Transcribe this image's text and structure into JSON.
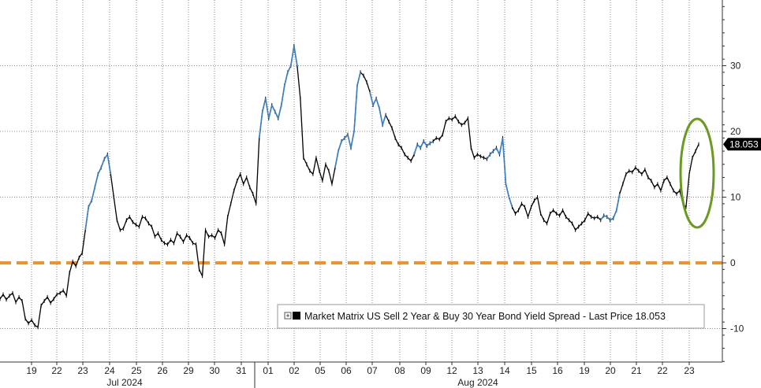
{
  "chart_data": {
    "type": "line",
    "title": "",
    "xlabel": "",
    "ylabel": "",
    "ylim": [
      -15,
      40
    ],
    "y_ticks": [
      -10,
      0,
      10,
      20,
      30
    ],
    "grid": true,
    "legend_placement": "bottom-right",
    "legend": "Market Matrix US Sell 2 Year & Buy 30 Year Bond Yield Spread - Last Price 18.053",
    "last_price_label": "18.053",
    "last_price": 18.053,
    "zero_line_color": "#f0922b",
    "series_colors": {
      "price": "#000000",
      "highlight": "#3a7fc4"
    },
    "highlight_circle_color": "#6a9a1f",
    "x_day_labels": [
      "19",
      "22",
      "23",
      "24",
      "25",
      "26",
      "29",
      "30",
      "31",
      "01",
      "02",
      "05",
      "06",
      "07",
      "08",
      "09",
      "12",
      "13",
      "14",
      "15",
      "16",
      "19",
      "20",
      "21",
      "22",
      "23"
    ],
    "months": [
      {
        "label": "Jul 2024"
      },
      {
        "label": "Aug 2024"
      }
    ],
    "series": [
      {
        "values": [
          -5.5,
          -4.8,
          -5.6,
          -5.0,
          -4.6,
          -6.0,
          -5.2,
          -5.8,
          -8.5,
          -9.2,
          -8.7,
          -9.5,
          -9.8,
          -6.5,
          -5.8,
          -5.2,
          -6.1,
          -5.5,
          -4.8,
          -4.6,
          -4.2,
          -5.0,
          -1.5,
          0.2,
          -0.5,
          0.8,
          1.5,
          5.0,
          8.5,
          9.5,
          11.5,
          13.5,
          14.5,
          15.8,
          16.5,
          13.5,
          10.0,
          6.5,
          5.0,
          5.2,
          6.5,
          7.0,
          6.2,
          5.8,
          5.5,
          7.0,
          6.8,
          6.0,
          5.5,
          4.0,
          4.5,
          3.5,
          3.0,
          2.8,
          3.5,
          3.0,
          4.5,
          4.0,
          3.2,
          4.2,
          3.8,
          3.0,
          2.8,
          -1.0,
          -2.0,
          5.0,
          4.0,
          4.2,
          3.8,
          5.0,
          4.5,
          2.8,
          7.0,
          9.0,
          11.0,
          12.5,
          13.5,
          12.0,
          13.0,
          11.5,
          10.5,
          9.0,
          19.0,
          23.0,
          25.0,
          22.0,
          24.0,
          23.0,
          22.0,
          24.0,
          27.0,
          29.0,
          30.0,
          33.0,
          30.0,
          25.0,
          16.0,
          15.0,
          14.0,
          13.5,
          16.0,
          14.0,
          12.5,
          15.0,
          14.0,
          12.0,
          14.5,
          17.0,
          18.5,
          19.0,
          19.5,
          17.5,
          20.0,
          27.0,
          29.0,
          28.5,
          27.5,
          26.0,
          24.0,
          25.0,
          23.5,
          21.0,
          22.5,
          21.5,
          20.5,
          19.0,
          18.0,
          17.5,
          16.5,
          16.0,
          15.5,
          16.5,
          18.0,
          17.5,
          18.5,
          17.8,
          18.2,
          18.5,
          19.0,
          18.8,
          19.5,
          21.5,
          22.0,
          21.8,
          22.3,
          21.5,
          21.0,
          21.3,
          22.0,
          17.5,
          16.0,
          16.5,
          16.2,
          16.0,
          15.8,
          16.5,
          17.0,
          17.5,
          16.5,
          19.0,
          12.0,
          10.0,
          8.5,
          7.5,
          8.0,
          9.0,
          8.5,
          7.0,
          8.5,
          9.5,
          10.0,
          7.5,
          6.5,
          6.0,
          7.5,
          8.0,
          7.5,
          7.2,
          8.0,
          7.0,
          6.5,
          6.0,
          5.0,
          5.5,
          6.0,
          6.5,
          7.5,
          7.0,
          6.8,
          7.0,
          6.5,
          7.2,
          7.0,
          6.5,
          6.8,
          8.0,
          10.5,
          12.0,
          13.5,
          14.0,
          13.8,
          14.5,
          14.0,
          13.5,
          14.2,
          13.0,
          12.5,
          11.5,
          12.0,
          11.0,
          12.5,
          13.0,
          12.0,
          11.0,
          10.5,
          11.0,
          9.0,
          8.5,
          13.5,
          16.0,
          17.0,
          18.053
        ],
        "highlight_ranges": [
          [
            27,
            35
          ],
          [
            82,
            94
          ],
          [
            106,
            114
          ],
          [
            117,
            122
          ],
          [
            131,
            137
          ],
          [
            154,
            162
          ],
          [
            190,
            196
          ]
        ]
      }
    ]
  }
}
